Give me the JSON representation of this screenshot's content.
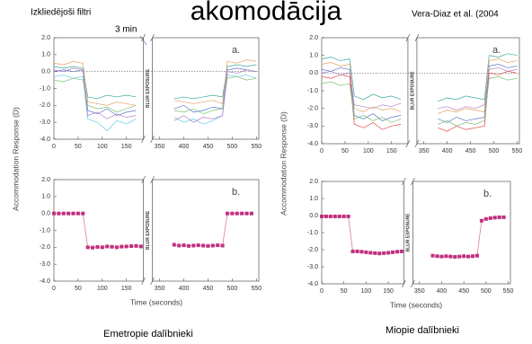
{
  "slide": {
    "title": "akomodācija",
    "note": "Izkliedējoši filtri",
    "note_time": "3 min",
    "citation": "Vera-Diaz et al. (2004",
    "captions": [
      "Emetropie dalībnieki",
      "Miopie dalībnieki"
    ]
  },
  "chart_data": [
    {
      "type": "line",
      "panel_label": "a.",
      "ylabel": "Accommodation Response (D)",
      "break_label": "BLUR EXPOSURE",
      "xlim": [
        0,
        555
      ],
      "xbreak": [
        185,
        335
      ],
      "xticks": [
        0,
        50,
        100,
        150,
        350,
        400,
        450,
        500,
        550
      ],
      "ylim": [
        -4,
        2
      ],
      "yticks": [
        {
          "value": 2,
          "label": "2.0"
        },
        {
          "value": 1,
          "label": "1.0"
        },
        {
          "value": 0,
          "label": "0.0"
        },
        {
          "value": -1,
          "label": "-1.0"
        },
        {
          "value": -2,
          "label": "-2.0"
        },
        {
          "value": -3,
          "label": "-3.0"
        },
        {
          "value": -4,
          "label": "-4.0"
        }
      ],
      "hline": 0,
      "x": [
        0,
        20,
        40,
        60,
        70,
        90,
        110,
        130,
        150,
        170,
        380,
        400,
        420,
        440,
        460,
        480,
        490,
        510,
        530,
        550
      ],
      "series": [
        {
          "color": "#3aa7a0",
          "values": [
            0.3,
            0.2,
            0.3,
            0.2,
            -1.5,
            -1.6,
            -1.4,
            -1.5,
            -1.4,
            -1.5,
            -1.6,
            -1.5,
            -1.6,
            -1.5,
            -1.4,
            -1.5,
            0.3,
            0.4,
            0.3,
            0.4
          ]
        },
        {
          "color": "#5a78c8",
          "values": [
            0,
            0.1,
            0,
            0.1,
            -2.3,
            -2.5,
            -2.2,
            -2.6,
            -2.4,
            -2.3,
            -2.2,
            -2.0,
            -2.4,
            -2.3,
            -2.1,
            -2.2,
            0.1,
            0.2,
            0.1,
            0
          ]
        },
        {
          "color": "#5fc8e0",
          "values": [
            -0.3,
            -0.2,
            -0.4,
            -0.3,
            -2.8,
            -3.0,
            -3.5,
            -2.9,
            -3.1,
            -2.8,
            -2.7,
            -3.0,
            -2.8,
            -3.1,
            -2.9,
            -2.6,
            -0.2,
            -0.3,
            -0.2,
            -0.4
          ]
        },
        {
          "color": "#e8a060",
          "values": [
            0.5,
            0.4,
            0.6,
            0.5,
            -1.8,
            -1.9,
            -2.0,
            -1.8,
            -1.9,
            -2.0,
            -1.7,
            -1.8,
            -1.9,
            -1.8,
            -1.7,
            -1.9,
            0.6,
            0.5,
            0.7,
            0.6
          ]
        },
        {
          "color": "#78c070",
          "values": [
            -0.5,
            -0.6,
            -0.4,
            -0.5,
            -2.0,
            -2.2,
            -2.1,
            -2.4,
            -2.2,
            -2.0,
            -2.3,
            -2.4,
            -2.2,
            -2.5,
            -2.3,
            -2.2,
            -0.4,
            -0.3,
            -0.5,
            -0.4
          ]
        },
        {
          "color": "#b080c8",
          "values": [
            0.1,
            0,
            0.2,
            0.1,
            -2.6,
            -2.4,
            -2.8,
            -2.5,
            -2.7,
            -2.6,
            -2.9,
            -2.6,
            -3.0,
            -2.7,
            -2.8,
            -2.6,
            0,
            -0.1,
            0.1,
            0
          ]
        }
      ]
    },
    {
      "type": "markers",
      "panel_label": "b.",
      "xlabel": "Time (seconds)",
      "break_label": "BLUR EXPOSURE",
      "xlim": [
        0,
        555
      ],
      "xbreak": [
        185,
        335
      ],
      "xticks": [
        0,
        50,
        100,
        150,
        350,
        400,
        450,
        500,
        550
      ],
      "ylim": [
        -4,
        2
      ],
      "yticks": [
        {
          "value": 2,
          "label": "2.0"
        },
        {
          "value": 1,
          "label": "1.0"
        },
        {
          "value": 0,
          "label": "0.0"
        },
        {
          "value": -1,
          "label": "-1.0"
        },
        {
          "value": -2,
          "label": "-2.0"
        },
        {
          "value": -3,
          "label": "-3.0"
        },
        {
          "value": -4,
          "label": "-4.0"
        }
      ],
      "x": [
        0,
        10,
        20,
        30,
        40,
        50,
        60,
        70,
        80,
        90,
        100,
        110,
        120,
        130,
        140,
        150,
        160,
        170,
        180,
        380,
        390,
        400,
        410,
        420,
        430,
        440,
        450,
        460,
        470,
        480,
        490,
        500,
        510,
        520,
        530,
        540
      ],
      "series": [
        {
          "color": "#c0307f",
          "values": [
            0,
            0,
            0,
            0,
            0,
            0,
            0,
            -2.0,
            -2.02,
            -1.98,
            -2.0,
            -1.95,
            -1.97,
            -2.0,
            -1.96,
            -1.95,
            -1.93,
            -1.92,
            -1.95,
            -1.85,
            -1.9,
            -1.88,
            -1.92,
            -1.9,
            -1.88,
            -1.9,
            -1.92,
            -1.9,
            -1.88,
            -1.9,
            0,
            0,
            0,
            0,
            0,
            0
          ]
        }
      ]
    },
    {
      "type": "line",
      "panel_label": "a.",
      "ylabel": "Accommodation Response (D)",
      "break_label": "BLUR EXPOSURE",
      "xlim": [
        0,
        555
      ],
      "xbreak": [
        185,
        335
      ],
      "xticks": [
        0,
        50,
        100,
        150,
        350,
        400,
        450,
        500,
        550
      ],
      "ylim": [
        -4,
        2
      ],
      "yticks": [
        {
          "value": 2,
          "label": "2.0"
        },
        {
          "value": 1,
          "label": "1.0"
        },
        {
          "value": 0,
          "label": "0.0"
        },
        {
          "value": -1,
          "label": "-1.0"
        },
        {
          "value": -2,
          "label": "-2.0"
        },
        {
          "value": -3,
          "label": "-3.0"
        },
        {
          "value": -4,
          "label": "-4.0"
        }
      ],
      "hline": 0,
      "x": [
        0,
        20,
        40,
        60,
        70,
        90,
        110,
        130,
        150,
        170,
        380,
        400,
        420,
        440,
        460,
        480,
        490,
        510,
        530,
        550
      ],
      "series": [
        {
          "color": "#3aa7a0",
          "values": [
            0.8,
            0.9,
            0.7,
            0.8,
            -1.3,
            -1.5,
            -1.2,
            -1.4,
            -1.3,
            -1.5,
            -1.6,
            -1.4,
            -1.5,
            -1.3,
            -1.4,
            -1.5,
            1.0,
            0.9,
            1.1,
            1.0
          ]
        },
        {
          "color": "#5a78c8",
          "values": [
            0.2,
            0.1,
            0.3,
            0.2,
            -2.4,
            -2.6,
            -2.3,
            -2.7,
            -2.5,
            -2.4,
            -2.6,
            -2.8,
            -2.5,
            -2.7,
            -2.6,
            -2.5,
            0.4,
            0.5,
            0.3,
            0.4
          ]
        },
        {
          "color": "#e04848",
          "values": [
            -0.2,
            -0.3,
            -0.1,
            -0.2,
            -2.9,
            -3.1,
            -2.8,
            -3.2,
            -3.0,
            -2.9,
            -3.1,
            -3.3,
            -3.0,
            -3.2,
            -3.1,
            -3.0,
            0.0,
            -0.1,
            0.1,
            0.0
          ]
        },
        {
          "color": "#e8a060",
          "values": [
            0.5,
            0.6,
            0.4,
            0.5,
            -2.0,
            -2.2,
            -1.9,
            -2.1,
            -2.0,
            -2.2,
            -2.3,
            -2.1,
            -2.2,
            -2.0,
            -2.1,
            -2.2,
            0.7,
            0.8,
            0.6,
            0.7
          ]
        },
        {
          "color": "#78c070",
          "values": [
            -0.6,
            -0.5,
            -0.7,
            -0.6,
            -2.6,
            -2.4,
            -2.7,
            -2.5,
            -2.8,
            -2.6,
            -2.9,
            -2.7,
            -3.0,
            -2.8,
            -2.9,
            -2.7,
            -0.3,
            -0.2,
            -0.4,
            -0.3
          ]
        },
        {
          "color": "#b080c8",
          "values": [
            0.0,
            0.1,
            -0.1,
            0.0,
            -1.8,
            -1.9,
            -2.0,
            -1.8,
            -1.9,
            -1.7,
            -2.0,
            -1.9,
            -2.1,
            -1.9,
            -2.0,
            -1.8,
            0.2,
            0.3,
            0.1,
            0.2
          ]
        }
      ]
    },
    {
      "type": "markers",
      "panel_label": "b.",
      "xlabel": "Time (seconds)",
      "break_label": "BLUR EXPOSURE",
      "xlim": [
        0,
        555
      ],
      "xbreak": [
        185,
        335
      ],
      "xticks": [
        0,
        50,
        100,
        150,
        350,
        400,
        450,
        500,
        550
      ],
      "ylim": [
        -4,
        2
      ],
      "yticks": [
        {
          "value": 2,
          "label": "2.0"
        },
        {
          "value": 1,
          "label": "1.0"
        },
        {
          "value": 0,
          "label": "0.0"
        },
        {
          "value": -1,
          "label": "-1.0"
        },
        {
          "value": -2,
          "label": "-2.0"
        },
        {
          "value": -3,
          "label": "-3.0"
        },
        {
          "value": -4,
          "label": "-4.0"
        }
      ],
      "x": [
        0,
        10,
        20,
        30,
        40,
        50,
        60,
        70,
        80,
        90,
        100,
        110,
        120,
        130,
        140,
        150,
        160,
        170,
        180,
        380,
        390,
        400,
        410,
        420,
        430,
        440,
        450,
        460,
        470,
        480,
        490,
        500,
        510,
        520,
        530,
        540
      ],
      "series": [
        {
          "color": "#c0307f",
          "values": [
            -0.05,
            -0.05,
            -0.05,
            -0.05,
            -0.05,
            -0.05,
            -0.05,
            -2.1,
            -2.1,
            -2.12,
            -2.15,
            -2.18,
            -2.2,
            -2.22,
            -2.2,
            -2.18,
            -2.15,
            -2.12,
            -2.1,
            -2.35,
            -2.38,
            -2.4,
            -2.38,
            -2.4,
            -2.42,
            -2.4,
            -2.38,
            -2.4,
            -2.38,
            -2.35,
            -0.3,
            -0.2,
            -0.15,
            -0.12,
            -0.1,
            -0.1
          ]
        }
      ]
    }
  ]
}
